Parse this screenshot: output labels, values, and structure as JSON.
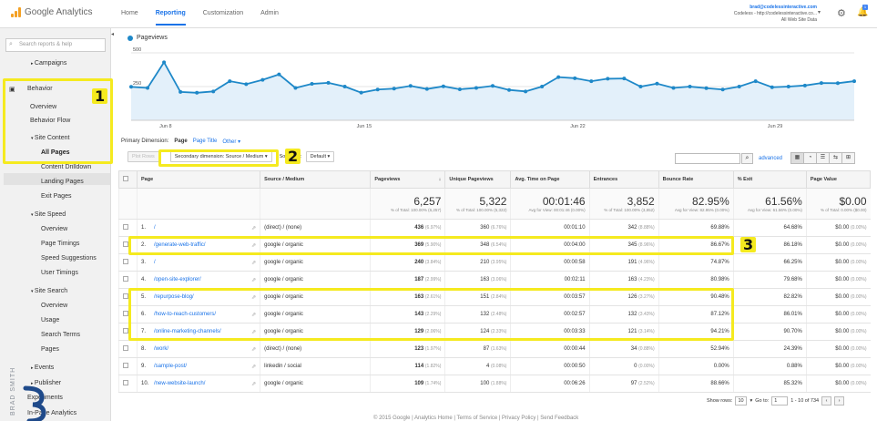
{
  "app": {
    "logo_text": "Google Analytics",
    "brand_color": "#f4a124"
  },
  "nav": [
    {
      "label": "Home"
    },
    {
      "label": "Reporting",
      "active": true
    },
    {
      "label": "Customization"
    },
    {
      "label": "Admin"
    }
  ],
  "account": {
    "email": "brad@codelessinteractive.com",
    "line2": "Codeless - http://codelessinteractive.co...",
    "line3": "All Web Site Data",
    "notifications": "1"
  },
  "sidebar": {
    "search_placeholder": "Search reports & help",
    "items": [
      {
        "label": "Campaigns",
        "prefix": "▸"
      },
      {
        "label": "Behavior"
      },
      {
        "label": "Overview"
      },
      {
        "label": "Behavior Flow"
      },
      {
        "label": "Site Content",
        "prefix": "▾"
      },
      {
        "label": "All Pages"
      },
      {
        "label": "Content Drilldown"
      },
      {
        "label": "Landing Pages"
      },
      {
        "label": "Exit Pages"
      },
      {
        "label": "Site Speed",
        "prefix": "▾"
      },
      {
        "label": "Overview"
      },
      {
        "label": "Page Timings"
      },
      {
        "label": "Speed Suggestions"
      },
      {
        "label": "User Timings"
      },
      {
        "label": "Site Search",
        "prefix": "▾"
      },
      {
        "label": "Overview"
      },
      {
        "label": "Usage"
      },
      {
        "label": "Search Terms"
      },
      {
        "label": "Pages"
      },
      {
        "label": "Events",
        "prefix": "▸"
      },
      {
        "label": "Publisher",
        "prefix": "▸"
      },
      {
        "label": "Experiments"
      },
      {
        "label": "In-Page Analytics"
      }
    ]
  },
  "annotations": {
    "one": "1",
    "two": "2",
    "three": "3",
    "highlight_color": "#f5ea1f"
  },
  "chart_data": {
    "type": "line",
    "title": "",
    "series": [
      {
        "name": "Pageviews",
        "color": "#1e88c8",
        "values": [
          248,
          240,
          430,
          210,
          204,
          214,
          290,
          268,
          300,
          340,
          240,
          270,
          278,
          250,
          205,
          228,
          235,
          255,
          232,
          252,
          230,
          240,
          255,
          225,
          214,
          250,
          320,
          312,
          290,
          308,
          310,
          250,
          272,
          240,
          250,
          238,
          228,
          250,
          290,
          245,
          250,
          258,
          276,
          275,
          290
        ]
      },
      {
        "name": "",
        "values": []
      }
    ],
    "x_tick_labels": [
      "Jun 8",
      "Jun 15",
      "Jun 22",
      "Jun 29"
    ],
    "y_tick_labels": [
      "500",
      "250"
    ],
    "ylim": [
      0,
      500
    ],
    "grid": true
  },
  "report": {
    "primary_dimension_label": "Primary Dimension:",
    "primary_dimension_options": [
      "Page",
      "Page Title",
      "Other ▾"
    ],
    "plot_rows": "Plot Rows",
    "secondary_dimension": "Secondary dimension: Source / Medium",
    "sort_type": "Sort Type:",
    "sort_value": "Default",
    "advanced": "advanced",
    "columns": [
      "Page",
      "Source / Medium",
      "Pageviews",
      "Unique Pageviews",
      "Avg. Time on Page",
      "Entrances",
      "Bounce Rate",
      "% Exit",
      "Page Value"
    ],
    "totals": [
      {
        "big": "6,257",
        "sub": "% of Total: 100.00% (6,257)"
      },
      {
        "big": "5,322",
        "sub": "% of Total: 100.00% (5,322)"
      },
      {
        "big": "00:01:46",
        "sub": "Avg for View: 00:01:46 (0.00%)"
      },
      {
        "big": "3,852",
        "sub": "% of Total: 100.00% (3,852)"
      },
      {
        "big": "82.95%",
        "sub": "Avg for View: 82.95% (0.00%)"
      },
      {
        "big": "61.56%",
        "sub": "Avg for View: 61.56% (0.00%)"
      },
      {
        "big": "$0.00",
        "sub": "% of Total: 0.00% ($0.00)"
      }
    ],
    "rows": [
      {
        "n": "1.",
        "page": "/",
        "src": "(direct) / (none)",
        "pv": "436",
        "pvp": "(6.97%)",
        "upv": "360",
        "upvp": "(6.76%)",
        "time": "00:01:10",
        "ent": "342",
        "entp": "(8.88%)",
        "br": "69.88%",
        "exit": "64.68%",
        "val": "$0.00",
        "valp": "(0.00%)"
      },
      {
        "n": "2.",
        "page": "/generate-web-traffic/",
        "src": "google / organic",
        "pv": "369",
        "pvp": "(5.90%)",
        "upv": "348",
        "upvp": "(6.54%)",
        "time": "00:04:00",
        "ent": "345",
        "entp": "(8.96%)",
        "br": "86.67%",
        "exit": "86.18%",
        "val": "$0.00",
        "valp": "(0.00%)"
      },
      {
        "n": "3.",
        "page": "/",
        "src": "google / organic",
        "pv": "240",
        "pvp": "(3.84%)",
        "upv": "210",
        "upvp": "(3.95%)",
        "time": "00:00:58",
        "ent": "191",
        "entp": "(4.96%)",
        "br": "74.87%",
        "exit": "66.25%",
        "val": "$0.00",
        "valp": "(0.00%)"
      },
      {
        "n": "4.",
        "page": "/open-site-explorer/",
        "src": "google / organic",
        "pv": "187",
        "pvp": "(2.99%)",
        "upv": "163",
        "upvp": "(3.06%)",
        "time": "00:02:11",
        "ent": "163",
        "entp": "(4.23%)",
        "br": "80.98%",
        "exit": "79.68%",
        "val": "$0.00",
        "valp": "(0.00%)"
      },
      {
        "n": "5.",
        "page": "/repurpose-blog/",
        "src": "google / organic",
        "pv": "163",
        "pvp": "(2.61%)",
        "upv": "151",
        "upvp": "(2.84%)",
        "time": "00:03:57",
        "ent": "126",
        "entp": "(3.27%)",
        "br": "90.48%",
        "exit": "82.82%",
        "val": "$0.00",
        "valp": "(0.00%)"
      },
      {
        "n": "6.",
        "page": "/how-to-reach-customers/",
        "src": "google / organic",
        "pv": "143",
        "pvp": "(2.29%)",
        "upv": "132",
        "upvp": "(2.48%)",
        "time": "00:02:57",
        "ent": "132",
        "entp": "(3.43%)",
        "br": "87.12%",
        "exit": "86.01%",
        "val": "$0.00",
        "valp": "(0.00%)"
      },
      {
        "n": "7.",
        "page": "/online-marketing-channels/",
        "src": "google / organic",
        "pv": "129",
        "pvp": "(2.06%)",
        "upv": "124",
        "upvp": "(2.33%)",
        "time": "00:03:33",
        "ent": "121",
        "entp": "(3.14%)",
        "br": "94.21%",
        "exit": "90.70%",
        "val": "$0.00",
        "valp": "(0.00%)"
      },
      {
        "n": "8.",
        "page": "/work/",
        "src": "(direct) / (none)",
        "pv": "123",
        "pvp": "(1.97%)",
        "upv": "87",
        "upvp": "(1.63%)",
        "time": "00:00:44",
        "ent": "34",
        "entp": "(0.88%)",
        "br": "52.94%",
        "exit": "24.39%",
        "val": "$0.00",
        "valp": "(0.00%)"
      },
      {
        "n": "9.",
        "page": "/sample-post/",
        "src": "linkedin / social",
        "pv": "114",
        "pvp": "(1.82%)",
        "upv": "4",
        "upvp": "(0.08%)",
        "time": "00:00:50",
        "ent": "0",
        "entp": "(0.00%)",
        "br": "0.00%",
        "exit": "0.88%",
        "val": "$0.00",
        "valp": "(0.00%)"
      },
      {
        "n": "10.",
        "page": "/new-website-launch/",
        "src": "google / organic",
        "pv": "109",
        "pvp": "(1.74%)",
        "upv": "100",
        "upvp": "(1.88%)",
        "time": "00:06:26",
        "ent": "97",
        "entp": "(2.52%)",
        "br": "88.66%",
        "exit": "85.32%",
        "val": "$0.00",
        "valp": "(0.00%)"
      }
    ],
    "footer": {
      "show_rows": "Show rows:",
      "rows_value": "10",
      "goto": "Go to:",
      "goto_value": "1",
      "range": "1 - 10 of 734"
    }
  },
  "bottom_links": "© 2015 Google | Analytics Home | Terms of Service | Privacy Policy | Send Feedback",
  "watermark": "BRAD SMITH"
}
